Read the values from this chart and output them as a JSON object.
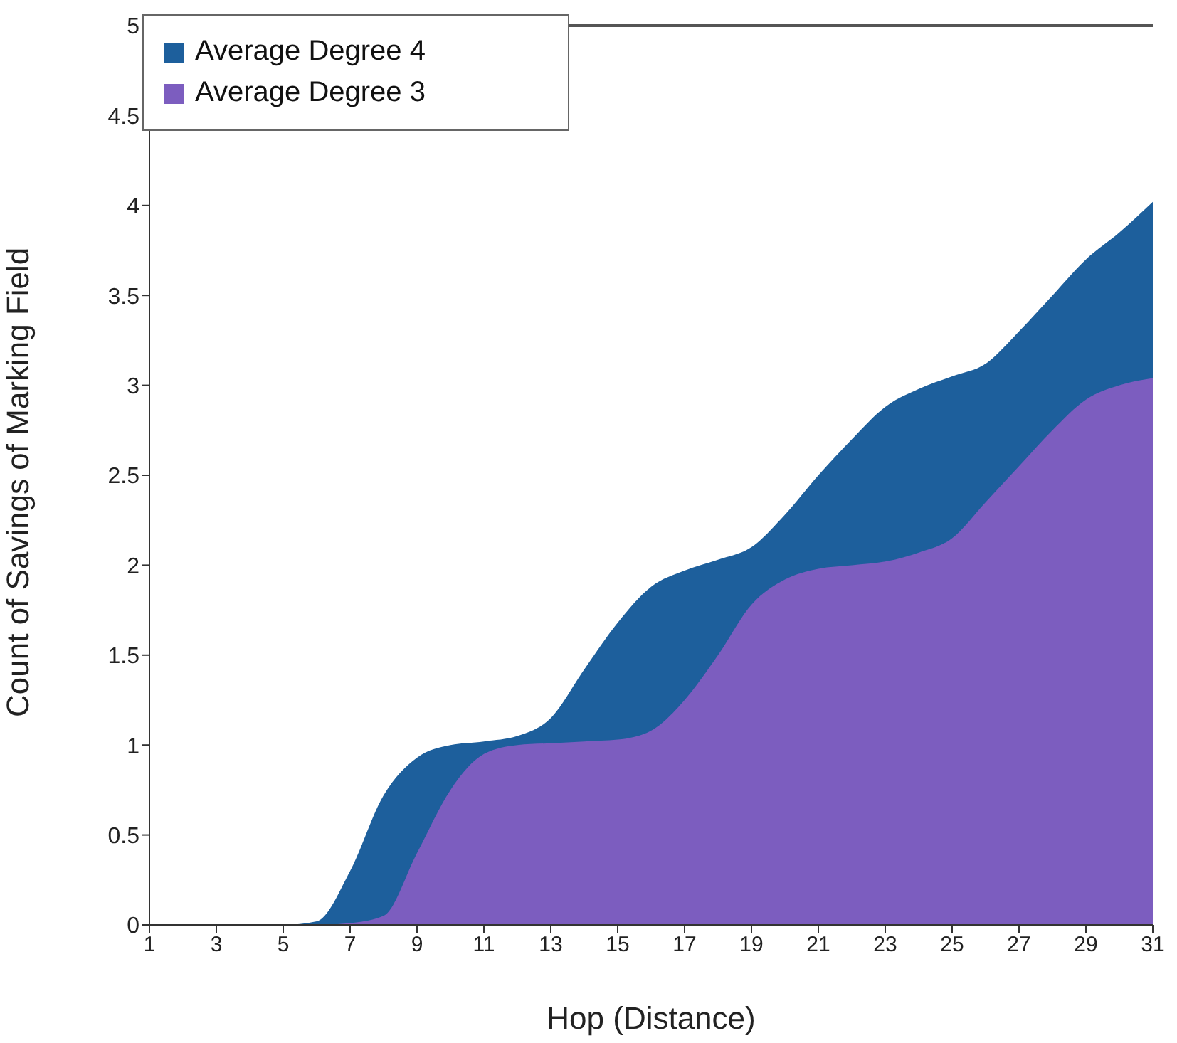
{
  "chart_data": {
    "type": "area",
    "xlabel": "Hop (Distance)",
    "ylabel": "Count of Savings of Marking Field",
    "x": [
      1,
      2,
      3,
      4,
      5,
      6,
      7,
      8,
      9,
      10,
      11,
      12,
      13,
      14,
      15,
      16,
      17,
      18,
      19,
      20,
      21,
      22,
      23,
      24,
      25,
      26,
      27,
      28,
      29,
      30,
      31
    ],
    "series": [
      {
        "name": "Average Degree 4",
        "color": "#1d5f9c",
        "values": [
          0,
          0,
          0,
          0,
          0,
          0.02,
          0.3,
          0.72,
          0.93,
          1.0,
          1.02,
          1.05,
          1.15,
          1.42,
          1.68,
          1.88,
          1.97,
          2.03,
          2.1,
          2.28,
          2.5,
          2.7,
          2.88,
          2.98,
          3.05,
          3.12,
          3.3,
          3.5,
          3.7,
          3.85,
          4.02
        ]
      },
      {
        "name": "Average Degree 3",
        "color": "#7c5dbf",
        "values": [
          0,
          0,
          0,
          0,
          0,
          0,
          0.01,
          0.05,
          0.4,
          0.75,
          0.95,
          1.0,
          1.01,
          1.02,
          1.03,
          1.08,
          1.25,
          1.5,
          1.78,
          1.92,
          1.98,
          2.0,
          2.02,
          2.07,
          2.15,
          2.35,
          2.55,
          2.75,
          2.92,
          3.0,
          3.04
        ]
      }
    ],
    "xlim": [
      1,
      31
    ],
    "xticks": [
      1,
      3,
      5,
      7,
      9,
      11,
      13,
      15,
      17,
      19,
      21,
      23,
      25,
      27,
      29,
      31
    ],
    "ylim": [
      0,
      5
    ],
    "yticks": [
      0,
      0.5,
      1,
      1.5,
      2,
      2.5,
      3,
      3.5,
      4,
      4.5,
      5
    ],
    "grid": false,
    "legend": "top left"
  }
}
